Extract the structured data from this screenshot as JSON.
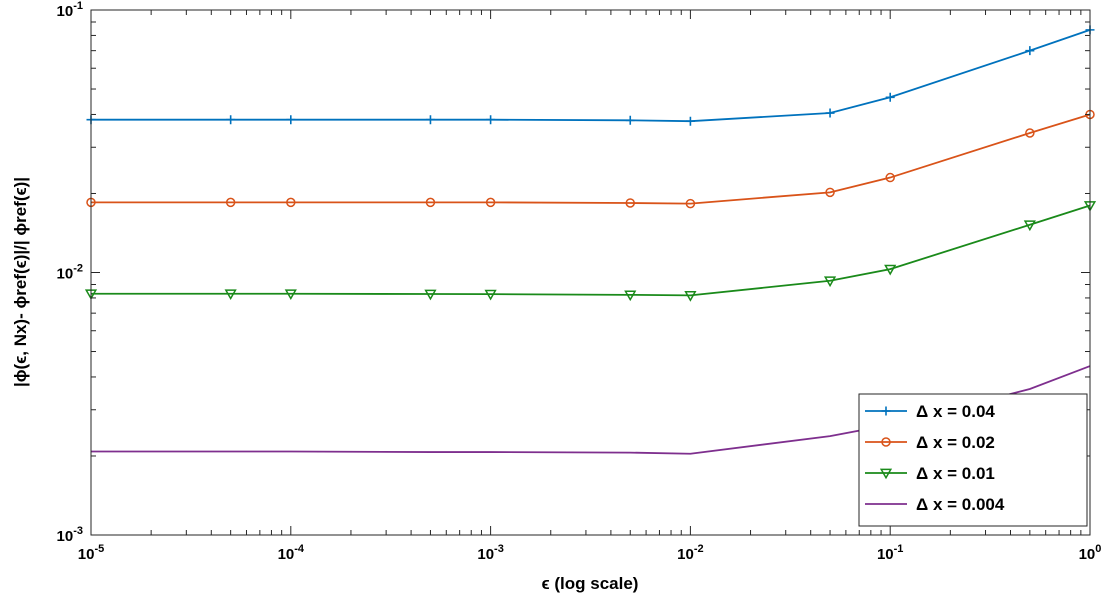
{
  "chart_data": {
    "type": "line",
    "xscale": "log",
    "yscale": "log",
    "xlim": [
      1e-05,
      1
    ],
    "ylim": [
      0.001,
      0.1
    ],
    "grid": false,
    "legend_position": "bottom-right",
    "xlabel": "ϵ (log scale)",
    "ylabel": "|ϕ(ϵ, Nx)-  ϕref(ϵ)|/|  ϕref(ϵ)|",
    "x_ticks": [
      {
        "value": 1e-05,
        "base": "10",
        "exp": "-5"
      },
      {
        "value": 0.0001,
        "base": "10",
        "exp": "-4"
      },
      {
        "value": 0.001,
        "base": "10",
        "exp": "-3"
      },
      {
        "value": 0.01,
        "base": "10",
        "exp": "-2"
      },
      {
        "value": 0.1,
        "base": "10",
        "exp": "-1"
      },
      {
        "value": 1,
        "base": "10",
        "exp": "0"
      }
    ],
    "y_ticks": [
      {
        "value": 0.001,
        "base": "10",
        "exp": "-3"
      },
      {
        "value": 0.01,
        "base": "10",
        "exp": "-2"
      },
      {
        "value": 0.1,
        "base": "10",
        "exp": "-1"
      }
    ],
    "x": [
      1e-05,
      5e-05,
      0.0001,
      0.0005,
      0.001,
      0.005,
      0.01,
      0.05,
      0.1,
      0.5,
      1
    ],
    "series": [
      {
        "name": "Δ x = 0.04",
        "color": "#0072BD",
        "marker": "plus",
        "values": [
          0.0382,
          0.0382,
          0.0382,
          0.0382,
          0.0382,
          0.038,
          0.0377,
          0.0405,
          0.0465,
          0.07,
          0.084
        ]
      },
      {
        "name": "Δ x = 0.02",
        "color": "#D95319",
        "marker": "circle",
        "values": [
          0.0185,
          0.0185,
          0.0185,
          0.0185,
          0.0185,
          0.0184,
          0.0183,
          0.0202,
          0.023,
          0.034,
          0.04
        ]
      },
      {
        "name": "Δ x = 0.01",
        "color": "#1A8A1A",
        "marker": "triangle-down",
        "values": [
          0.0083,
          0.0083,
          0.0083,
          0.00828,
          0.00827,
          0.00822,
          0.00818,
          0.0093,
          0.0103,
          0.0152,
          0.018
        ]
      },
      {
        "name": "Δ x = 0.004",
        "color": "#7E2F8E",
        "marker": "none",
        "values": [
          0.00208,
          0.00208,
          0.00208,
          0.00207,
          0.00207,
          0.00206,
          0.00204,
          0.00238,
          0.00263,
          0.0036,
          0.0044
        ]
      }
    ]
  }
}
